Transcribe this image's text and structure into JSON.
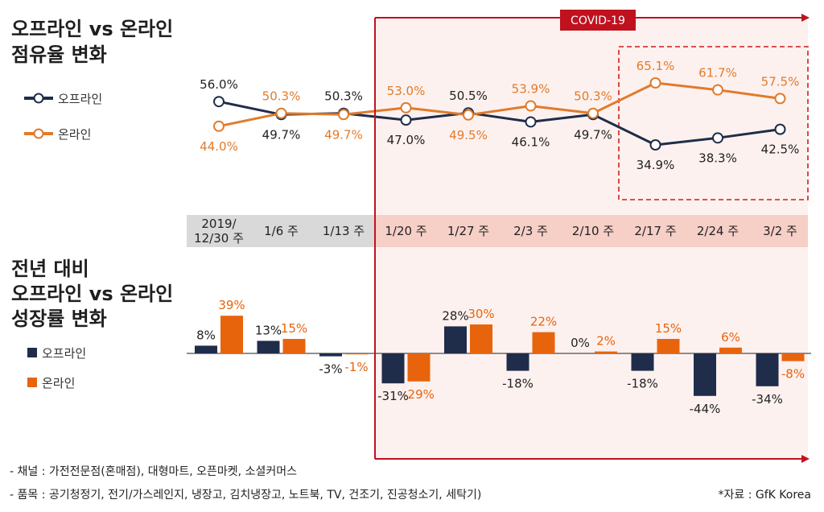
{
  "colors": {
    "offline": "#1f2d4a",
    "online_line": "#e07b2c",
    "online_bar": "#e8640c",
    "covid": "#c0111f",
    "covid_fill": "#fdf1ef",
    "week_gray": "#d9d9d9",
    "week_pink": "#f6cfc7"
  },
  "covid_label": "COVID-19",
  "footnotes": {
    "channel": "- 채널 : 가전전문점(혼매점), 대형마트, 오픈마켓, 소셜커머스",
    "items": "- 품목 : 공기청정기, 전기/가스레인지, 냉장고, 김치냉장고, 노트북, TV, 건조기, 진공청소기, 세탁기)",
    "source": "*자료 : GfK Korea"
  },
  "chart_data": [
    {
      "type": "line",
      "title_lines": [
        "오프라인 vs 온라인",
        "점유율 변화"
      ],
      "categories": [
        "2019/\n12/30 주",
        "1/6 주",
        "1/13 주",
        "1/20 주",
        "1/27 주",
        "2/3 주",
        "2/10 주",
        "2/17 주",
        "2/24 주",
        "3/2 주"
      ],
      "series": [
        {
          "name": "오프라인",
          "values": [
            56.0,
            49.7,
            50.3,
            47.0,
            50.5,
            46.1,
            49.7,
            34.9,
            38.3,
            42.5
          ],
          "labels": [
            "56.0%",
            "49.7%",
            "50.3%",
            "47.0%",
            "50.5%",
            "46.1%",
            "49.7%",
            "34.9%",
            "38.3%",
            "42.5%"
          ]
        },
        {
          "name": "온라인",
          "values": [
            44.0,
            50.3,
            49.7,
            53.0,
            49.5,
            53.9,
            50.3,
            65.1,
            61.7,
            57.5
          ],
          "labels": [
            "44.0%",
            "50.3%",
            "49.7%",
            "53.0%",
            "49.5%",
            "53.9%",
            "50.3%",
            "65.1%",
            "61.7%",
            "57.5%"
          ]
        }
      ],
      "unit": "%"
    },
    {
      "type": "bar",
      "title_lines": [
        "전년 대비",
        "오프라인 vs 온라인",
        "성장률 변화"
      ],
      "categories": [
        "2019/\n12/30 주",
        "1/6 주",
        "1/13 주",
        "1/20 주",
        "1/27 주",
        "2/3 주",
        "2/10 주",
        "2/17 주",
        "2/24 주",
        "3/2 주"
      ],
      "series": [
        {
          "name": "오프라인",
          "values": [
            8,
            13,
            -3,
            -31,
            28,
            -18,
            0,
            -18,
            -44,
            -34
          ],
          "labels": [
            "8%",
            "13%",
            "-3%",
            "-31%",
            "28%",
            "-18%",
            "0%",
            "-18%",
            "-44%",
            "-34%"
          ]
        },
        {
          "name": "온라인",
          "values": [
            39,
            15,
            -1,
            -29,
            30,
            22,
            2,
            15,
            6,
            -8
          ],
          "labels": [
            "39%",
            "15%",
            "-1%",
            "-29%",
            "30%",
            "22%",
            "2%",
            "15%",
            "6%",
            "-8%"
          ]
        }
      ],
      "unit": "%"
    }
  ]
}
